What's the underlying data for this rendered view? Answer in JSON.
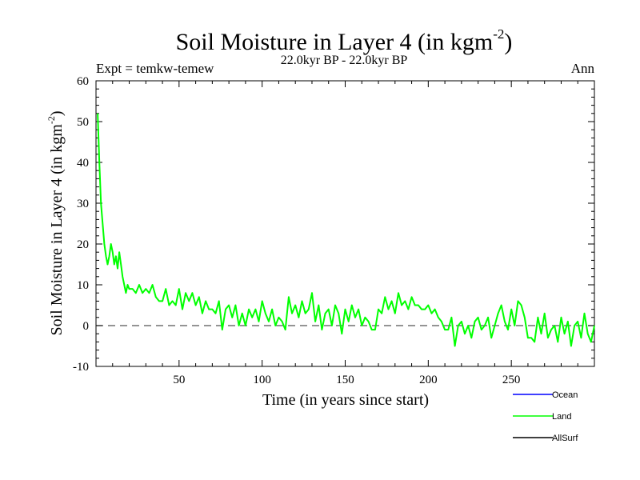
{
  "chart_data": {
    "type": "line",
    "title": "Soil Moisture in Layer 4 (in kgm",
    "title_sup": "-2",
    "title_end": ")",
    "subtitle": "22.0kyr BP - 22.0kyr BP",
    "left_note": "Expt = temkw-temew",
    "right_note": "Ann",
    "xlabel": "Time (in years since start)",
    "ylabel": "Soil Moisture in Layer 4 (in kgm",
    "ylabel_sup": "-2",
    "ylabel_end": ")",
    "xlim": [
      0,
      300
    ],
    "ylim": [
      -10,
      60
    ],
    "xticks": [
      50,
      100,
      150,
      200,
      250
    ],
    "yticks": [
      -10,
      0,
      10,
      20,
      30,
      40,
      50,
      60
    ],
    "reference_line": 0,
    "legend": [
      {
        "name": "Ocean",
        "color": "#0000ff"
      },
      {
        "name": "Land",
        "color": "#00ff00"
      },
      {
        "name": "AllSurf",
        "color": "#000000"
      }
    ],
    "series": [
      {
        "name": "Land",
        "color": "#00ff00",
        "x": [
          1,
          2,
          3,
          4,
          5,
          6,
          7,
          8,
          9,
          10,
          11,
          12,
          13,
          14,
          15,
          16,
          17,
          18,
          19,
          20,
          22,
          24,
          26,
          28,
          30,
          32,
          34,
          36,
          38,
          40,
          42,
          44,
          46,
          48,
          50,
          52,
          54,
          56,
          58,
          60,
          62,
          64,
          66,
          68,
          70,
          72,
          74,
          76,
          78,
          80,
          82,
          84,
          86,
          88,
          90,
          92,
          94,
          96,
          98,
          100,
          102,
          104,
          106,
          108,
          110,
          112,
          114,
          116,
          118,
          120,
          122,
          124,
          126,
          128,
          130,
          132,
          134,
          136,
          138,
          140,
          142,
          144,
          146,
          148,
          150,
          152,
          154,
          156,
          158,
          160,
          162,
          164,
          166,
          168,
          170,
          172,
          174,
          176,
          178,
          180,
          182,
          184,
          186,
          188,
          190,
          192,
          194,
          196,
          198,
          200,
          202,
          204,
          206,
          208,
          210,
          212,
          214,
          216,
          218,
          220,
          222,
          224,
          226,
          228,
          230,
          232,
          234,
          236,
          238,
          240,
          242,
          244,
          246,
          248,
          250,
          252,
          254,
          256,
          258,
          260,
          262,
          264,
          266,
          268,
          270,
          272,
          274,
          276,
          278,
          280,
          282,
          284,
          286,
          288,
          290,
          292,
          294,
          296,
          298,
          300
        ],
        "values": [
          52,
          40,
          30,
          25,
          20,
          17,
          15,
          17,
          20,
          18,
          15,
          17,
          14,
          18,
          15,
          12,
          10,
          8,
          10,
          9,
          9,
          8,
          10,
          8,
          9,
          8,
          10,
          7,
          6,
          6,
          9,
          5,
          6,
          5,
          9,
          4,
          8,
          6,
          8,
          5,
          7,
          3,
          6,
          4,
          4,
          3,
          6,
          -1,
          4,
          5,
          2,
          5,
          0,
          3,
          0,
          4,
          2,
          4,
          1,
          6,
          3,
          1,
          4,
          0,
          2,
          1,
          -1,
          7,
          3,
          5,
          2,
          6,
          3,
          4,
          8,
          1,
          5,
          -1,
          3,
          4,
          0,
          5,
          3,
          -2,
          4,
          1,
          5,
          2,
          4,
          0,
          2,
          1,
          -1,
          -1,
          4,
          3,
          7,
          4,
          6,
          3,
          8,
          5,
          6,
          4,
          7,
          5,
          5,
          4,
          4,
          5,
          3,
          4,
          2,
          1,
          -1,
          -1,
          2,
          -5,
          0,
          1,
          -2,
          0,
          -3,
          1,
          2,
          -1,
          0,
          2,
          -3,
          0,
          3,
          5,
          1,
          -1,
          4,
          0,
          6,
          5,
          2,
          -3,
          -3,
          -4,
          2,
          -2,
          3,
          -3,
          -1,
          0,
          -4,
          2,
          -2,
          1,
          -5,
          0,
          1,
          -3,
          3,
          -2,
          -4,
          0
        ]
      }
    ]
  }
}
